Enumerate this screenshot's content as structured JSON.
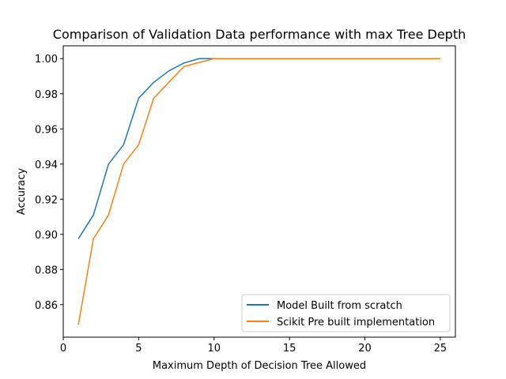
{
  "chart_data": {
    "type": "line",
    "title": "Comparison of Validation Data performance with max Tree Depth",
    "xlabel": "Maximum Depth of Decision Tree Allowed",
    "ylabel": "Accuracy",
    "xlim": [
      0,
      26
    ],
    "ylim": [
      0.8415,
      1.0073
    ],
    "xticks": [
      0,
      5,
      10,
      15,
      20,
      25
    ],
    "yticks": [
      0.86,
      0.88,
      0.9,
      0.92,
      0.94,
      0.96,
      0.98,
      1.0
    ],
    "xtick_labels": [
      "0",
      "5",
      "10",
      "15",
      "20",
      "25"
    ],
    "ytick_labels": [
      "0.86",
      "0.88",
      "0.90",
      "0.92",
      "0.94",
      "0.96",
      "0.98",
      "1.00"
    ],
    "grid": false,
    "legend_position": "lower-right",
    "x": [
      1,
      2,
      3,
      4,
      5,
      6,
      7,
      8,
      9,
      10,
      11,
      12,
      13,
      14,
      15,
      16,
      17,
      18,
      19,
      20,
      21,
      22,
      23,
      24,
      25
    ],
    "series": [
      {
        "name": "Model Built from scratch",
        "color": "#1f77b4",
        "values": [
          0.8975,
          0.911,
          0.94,
          0.951,
          0.9775,
          0.9865,
          0.993,
          0.9975,
          1.0,
          1.0,
          1.0,
          1.0,
          1.0,
          1.0,
          1.0,
          1.0,
          1.0,
          1.0,
          1.0,
          1.0,
          1.0,
          1.0,
          1.0,
          1.0,
          1.0
        ]
      },
      {
        "name": "Scikit Pre built implementation",
        "color": "#ff7f0e",
        "values": [
          0.8485,
          0.8975,
          0.911,
          0.94,
          0.951,
          0.9775,
          0.9865,
          0.9955,
          0.9978,
          1.0,
          1.0,
          1.0,
          1.0,
          1.0,
          1.0,
          1.0,
          1.0,
          1.0,
          1.0,
          1.0,
          1.0,
          1.0,
          1.0,
          1.0,
          1.0
        ]
      }
    ]
  }
}
